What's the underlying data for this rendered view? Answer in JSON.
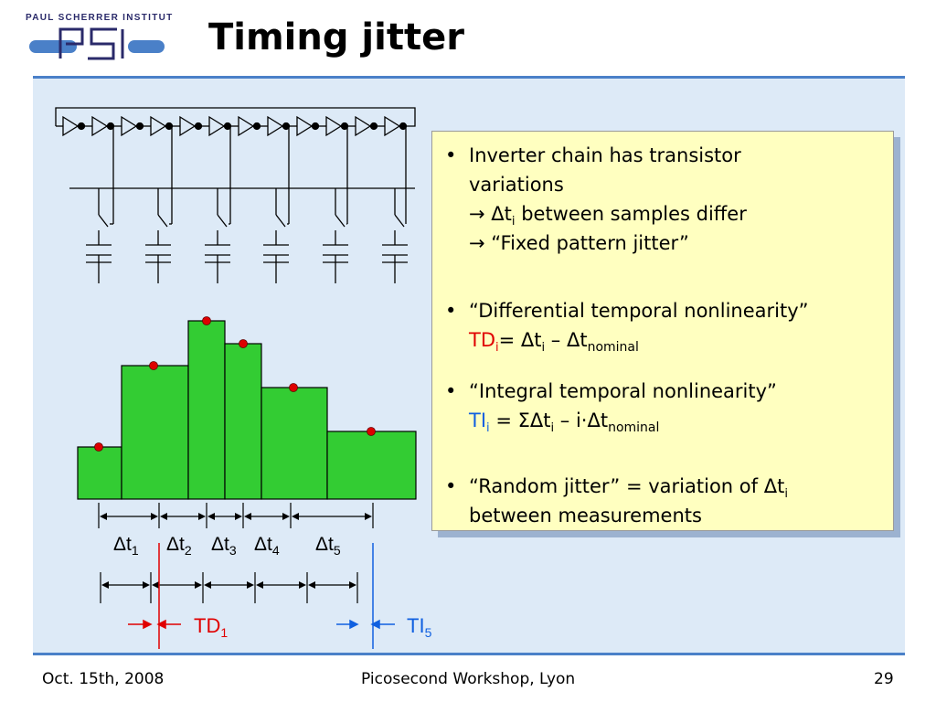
{
  "logo": {
    "institute": "PAUL SCHERRER INSTITUT",
    "mark": "PSI"
  },
  "title": "Timing jitter",
  "bullets": {
    "b1_line1": "Inverter chain has transistor",
    "b1_line2": "variations",
    "b1_line3_arrow": "→ ",
    "b1_line3_delta": "Δt",
    "b1_line3_sub": "i",
    "b1_line3_rest": " between samples differ",
    "b1_line4_arrow": "→ ",
    "b1_line4_rest": "“Fixed pattern jitter”",
    "b2_line1": "“Differential temporal nonlinearity”",
    "b2_td": "TD",
    "b2_td_sub": "i",
    "b2_eq": "= Δt",
    "b2_eq_sub": "i",
    "b2_minus": " – Δt",
    "b2_nominal": "nominal",
    "b3_line1": "“Integral temporal nonlinearity”",
    "b3_ti": "TI",
    "b3_ti_sub": "i",
    "b3_eq": " = ΣΔt",
    "b3_eq_sub": "i",
    "b3_minus": " – i·Δt",
    "b3_nominal": "nominal",
    "b4_line1_a": "“Random jitter” = variation of Δt",
    "b4_line1_sub": "i",
    "b4_line2": "between measurements",
    "bullet_char": "•"
  },
  "diagram": {
    "intervals": [
      {
        "label": "Δt",
        "sub": "1"
      },
      {
        "label": "Δt",
        "sub": "2"
      },
      {
        "label": "Δt",
        "sub": "3"
      },
      {
        "label": "Δt",
        "sub": "4"
      },
      {
        "label": "Δt",
        "sub": "5"
      }
    ],
    "td_label": "TD",
    "td_sub": "1",
    "ti_label": "TI",
    "ti_sub": "5",
    "colors": {
      "bars": "#33cc33",
      "dots": "#dd0000",
      "td": "#e00000",
      "ti": "#1060e0"
    }
  },
  "footer": {
    "date": "Oct. 15th, 2008",
    "event": "Picosecond Workshop, Lyon",
    "page": "29"
  }
}
